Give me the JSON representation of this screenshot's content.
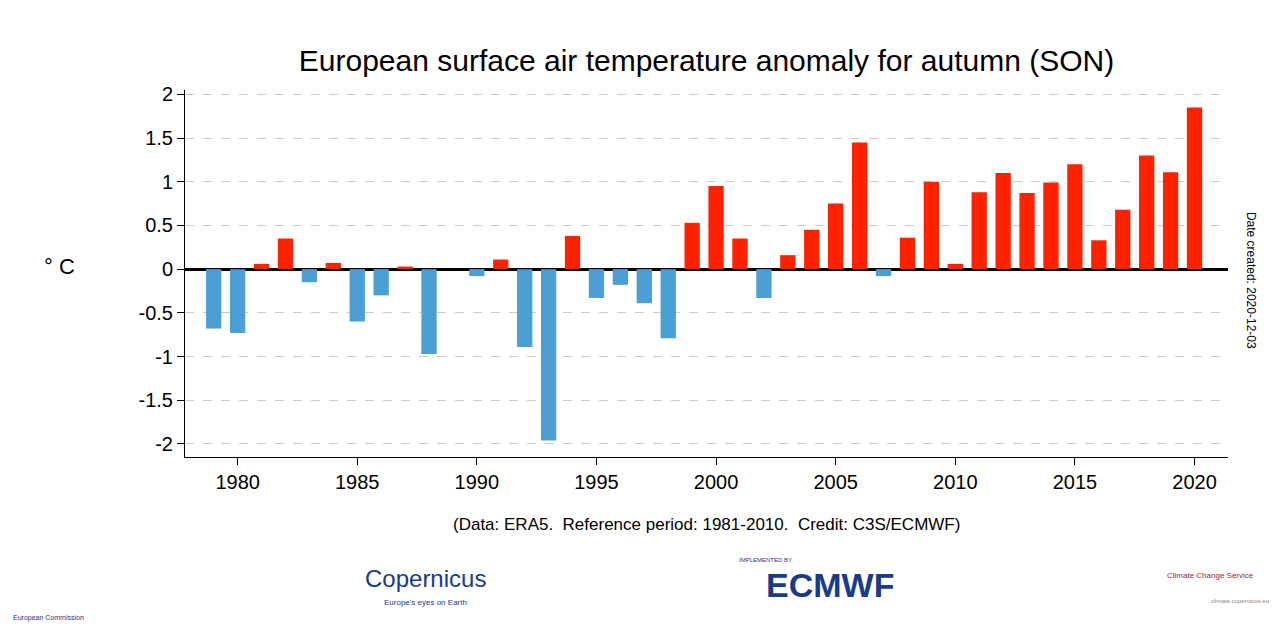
{
  "chart_data": {
    "type": "bar",
    "title": "European surface air temperature anomaly for autumn (SON)",
    "ylabel": "° C",
    "note": "(Data: ERA5.  Reference period: 1981-2010.  Credit: C3S/ECMWF)",
    "side_note": "Date created: 2020-12-03",
    "logos": [
      "European Commission",
      "Copernicus",
      "Europe's eyes on Earth",
      "IMPLEMENTED BY",
      "ECMWF",
      "Climate Change Service",
      "climate.copernicus.eu"
    ],
    "x": [
      1979,
      1980,
      1981,
      1982,
      1983,
      1984,
      1985,
      1986,
      1987,
      1988,
      1989,
      1990,
      1991,
      1992,
      1993,
      1994,
      1995,
      1996,
      1997,
      1998,
      1999,
      2000,
      2001,
      2002,
      2003,
      2004,
      2005,
      2006,
      2007,
      2008,
      2009,
      2010,
      2011,
      2012,
      2013,
      2014,
      2015,
      2016,
      2017,
      2018,
      2019,
      2020
    ],
    "values": [
      -0.68,
      -0.73,
      0.06,
      0.35,
      -0.15,
      0.07,
      -0.6,
      -0.3,
      0.03,
      -0.97,
      0.0,
      -0.08,
      0.11,
      -0.89,
      -1.96,
      0.38,
      -0.33,
      -0.18,
      -0.39,
      -0.79,
      0.53,
      0.95,
      0.35,
      -0.33,
      0.16,
      0.45,
      0.75,
      1.45,
      -0.08,
      0.36,
      1.0,
      0.06,
      0.88,
      1.1,
      0.87,
      0.99,
      1.2,
      0.33,
      0.68,
      1.3,
      1.11,
      1.85
    ],
    "colors": [
      "#4b9fd5",
      "#4b9fd5",
      "#ff2200",
      "#ff2200",
      "#4b9fd5",
      "#ff2200",
      "#4b9fd5",
      "#4b9fd5",
      "#ff2200",
      "#4b9fd5",
      "#ff2200",
      "#4b9fd5",
      "#ff2200",
      "#4b9fd5",
      "#4b9fd5",
      "#ff2200",
      "#4b9fd5",
      "#4b9fd5",
      "#4b9fd5",
      "#4b9fd5",
      "#ff2200",
      "#ff2200",
      "#ff2200",
      "#4b9fd5",
      "#ff2200",
      "#ff2200",
      "#ff2200",
      "#ff2200",
      "#4b9fd5",
      "#ff2200",
      "#ff2200",
      "#ff2200",
      "#ff2200",
      "#ff2200",
      "#ff2200",
      "#ff2200",
      "#ff2200",
      "#ff2200",
      "#ff2200",
      "#ff2200",
      "#ff2200",
      "#ff2200"
    ],
    "xlim": [
      1977.8,
      2021.4
    ],
    "xticks": [
      1980,
      1985,
      1990,
      1995,
      2000,
      2005,
      2010,
      2015,
      2020
    ],
    "ylim": [
      -2.15,
      2.05
    ],
    "yticks": [
      -2,
      -1.5,
      -1,
      -0.5,
      0,
      0.5,
      1,
      1.5,
      2
    ],
    "grid": true
  }
}
